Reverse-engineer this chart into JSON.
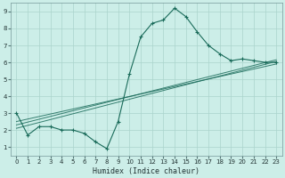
{
  "xlabel": "Humidex (Indice chaleur)",
  "bg_color": "#cceee8",
  "grid_color": "#aad4cc",
  "line_color": "#1a6b5a",
  "xlim": [
    -0.5,
    23.5
  ],
  "ylim": [
    0.5,
    9.5
  ],
  "xticks": [
    0,
    1,
    2,
    3,
    4,
    5,
    6,
    7,
    8,
    9,
    10,
    11,
    12,
    13,
    14,
    15,
    16,
    17,
    18,
    19,
    20,
    21,
    22,
    23
  ],
  "yticks": [
    1,
    2,
    3,
    4,
    5,
    6,
    7,
    8,
    9
  ],
  "curve_x": [
    0,
    1,
    2,
    3,
    4,
    5,
    6,
    7,
    8,
    9,
    10,
    11,
    12,
    13,
    14,
    15,
    16,
    17,
    18,
    19,
    20,
    21,
    22,
    23
  ],
  "curve_y": [
    3.0,
    1.7,
    2.2,
    2.2,
    2.0,
    2.0,
    1.8,
    1.3,
    0.9,
    2.5,
    5.3,
    7.5,
    8.3,
    8.5,
    9.2,
    8.7,
    7.8,
    7.0,
    6.5,
    6.1,
    6.2,
    6.1,
    6.0,
    6.0
  ],
  "reg_lines": [
    {
      "x": [
        0,
        23
      ],
      "y": [
        2.1,
        6.05
      ]
    },
    {
      "x": [
        0,
        23
      ],
      "y": [
        2.3,
        6.15
      ]
    },
    {
      "x": [
        0,
        23
      ],
      "y": [
        2.5,
        5.9
      ]
    }
  ]
}
